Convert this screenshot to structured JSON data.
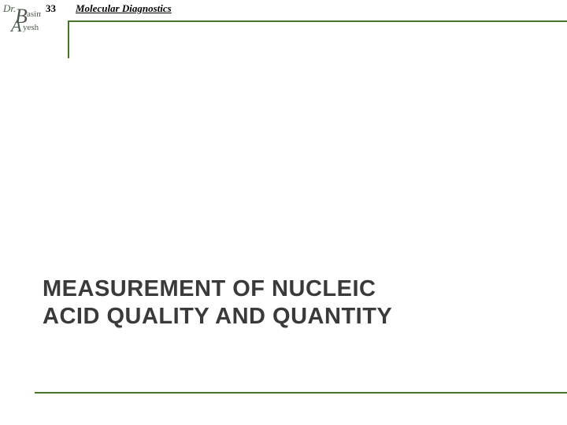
{
  "header": {
    "page_number": "33",
    "title": "Molecular Diagnostics",
    "line_color": "#467629"
  },
  "logo": {
    "text_dr": "Dr.",
    "letter_b": "B",
    "text_asim": "asim",
    "letter_a": "A",
    "text_yesh": "yesh",
    "text_color": "#4a5a4a"
  },
  "main": {
    "title_line1": "MEASUREMENT OF NUCLEIC",
    "title_line2": "ACID QUALITY AND QUANTITY",
    "title_color": "#3a3a3a"
  },
  "footer": {
    "line_color": "#467629"
  }
}
